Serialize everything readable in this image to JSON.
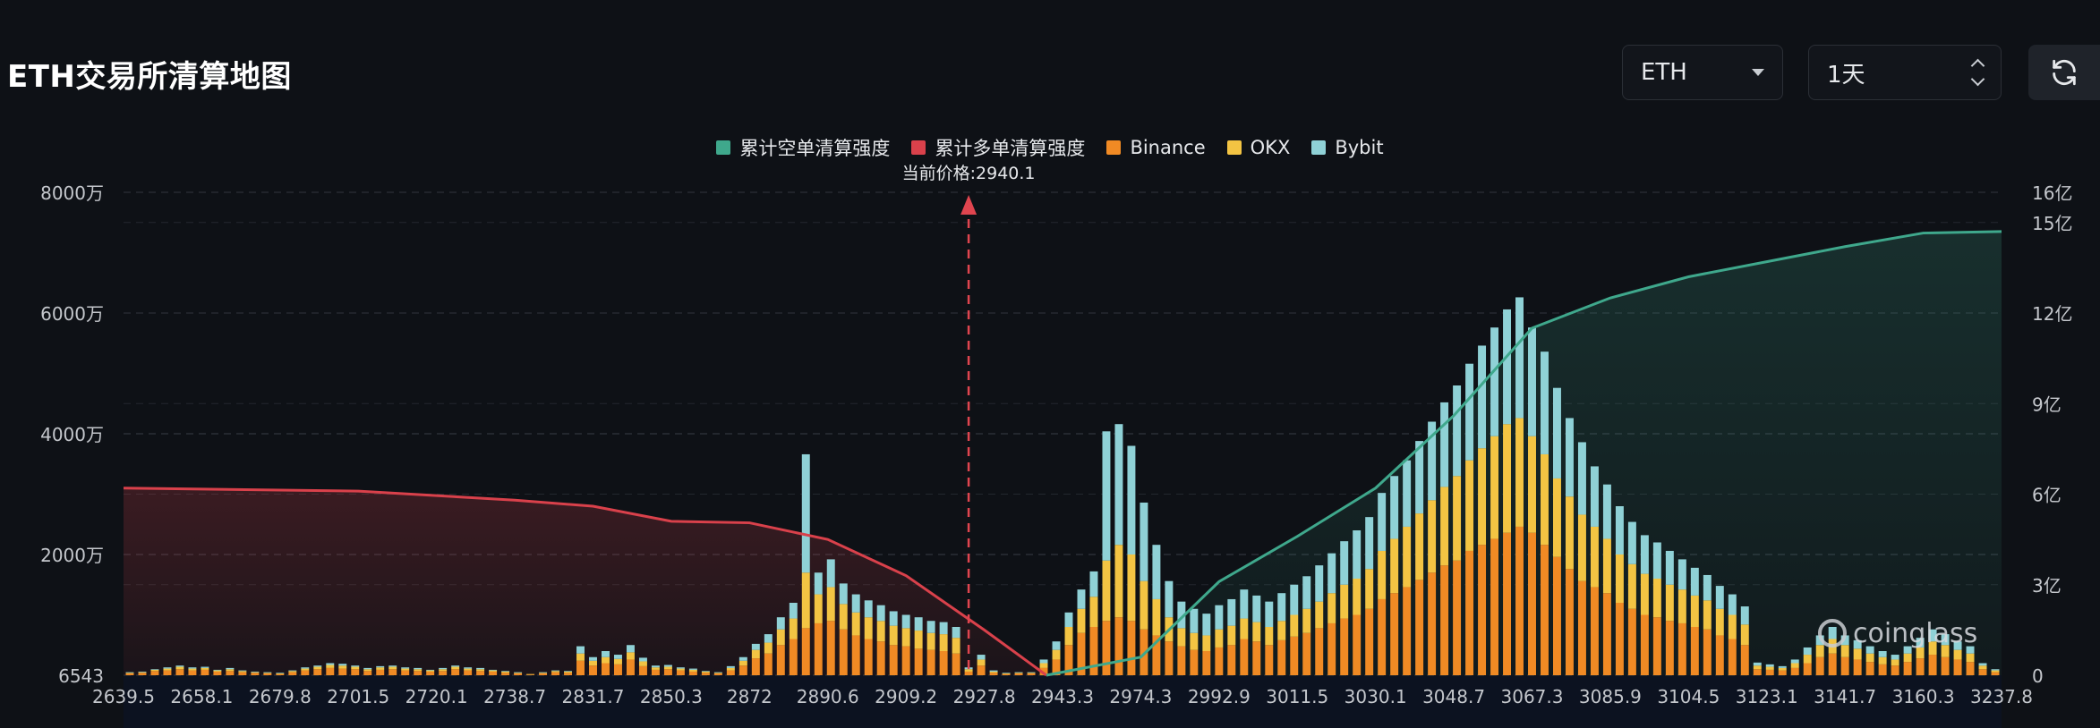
{
  "header": {
    "title": "ETH交易所清算地图",
    "asset_select": "ETH",
    "range_select": "1天",
    "refresh_icon": "refresh-icon"
  },
  "colors": {
    "background": "#0e1116",
    "short_cum": "#3fa88c",
    "long_cum": "#d9414b",
    "binance": "#f08a24",
    "okx": "#f3c443",
    "bybit": "#8fd1d6"
  },
  "chart_data": {
    "type": "bar",
    "legend": [
      {
        "key": "short_cum",
        "label": "累计空单清算强度"
      },
      {
        "key": "long_cum",
        "label": "累计多单清算强度"
      },
      {
        "key": "binance",
        "label": "Binance"
      },
      {
        "key": "okx",
        "label": "OKX"
      },
      {
        "key": "bybit",
        "label": "Bybit"
      }
    ],
    "legend_position": "top-center",
    "current_price_label": "当前价格:2940.1",
    "current_price": 2940.1,
    "x_tick_labels": [
      "2639.5",
      "2658.1",
      "2679.8",
      "2701.5",
      "2720.1",
      "2738.7",
      "2831.7",
      "2850.3",
      "2872",
      "2890.6",
      "2909.2",
      "2927.8",
      "2943.3",
      "2974.3",
      "2992.9",
      "3011.5",
      "3030.1",
      "3048.7",
      "3067.3",
      "3085.9",
      "3104.5",
      "3123.1",
      "3141.7",
      "3160.3",
      "3237.8"
    ],
    "y_left_ticks": [
      "6543",
      "2000万",
      "4000万",
      "6000万",
      "8000万"
    ],
    "y_left_range": [
      0,
      80000000
    ],
    "y_right_ticks": [
      "0",
      "3亿",
      "6亿",
      "9亿",
      "12亿",
      "15亿",
      "16亿"
    ],
    "y_right_range": [
      0,
      1600000000
    ],
    "grid": true,
    "bar_count": 150,
    "current_price_index": 67,
    "bars_binance": [
      0.3,
      0.4,
      0.7,
      0.8,
      1.0,
      0.8,
      0.9,
      0.6,
      0.7,
      0.5,
      0.4,
      0.3,
      0.2,
      0.5,
      0.8,
      1.0,
      1.2,
      1.1,
      1.0,
      0.7,
      0.9,
      1.0,
      0.8,
      0.7,
      0.6,
      0.7,
      1.0,
      0.8,
      0.7,
      0.6,
      0.4,
      0.3,
      0.1,
      0.3,
      0.5,
      0.4,
      2.4,
      1.6,
      2.0,
      1.8,
      2.6,
      1.5,
      0.9,
      1.0,
      0.8,
      0.6,
      0.4,
      0.3,
      0.8,
      1.6,
      2.8,
      3.6,
      5.0,
      6.0,
      7.8,
      8.6,
      9.0,
      7.6,
      6.6,
      6.0,
      5.6,
      5.0,
      4.8,
      4.4,
      4.2,
      4.0,
      3.6,
      0.6,
      1.6,
      0.4,
      0.2,
      0.3,
      0.3,
      1.2,
      2.6,
      5.0,
      7.0,
      8.0,
      9.0,
      9.6,
      9.0,
      7.6,
      6.6,
      5.6,
      4.8,
      4.2,
      4.0,
      4.6,
      5.0,
      6.0,
      5.6,
      5.0,
      5.8,
      6.4,
      7.0,
      7.8,
      8.6,
      9.4,
      10.0,
      11.0,
      12.6,
      13.6,
      14.6,
      15.8,
      17.0,
      18.2,
      19.0,
      20.6,
      21.6,
      22.6,
      23.6,
      24.6,
      23.6,
      21.6,
      19.6,
      17.6,
      15.6,
      14.6,
      13.6,
      12.0,
      11.0,
      10.0,
      9.6,
      9.0,
      8.6,
      8.0,
      7.6,
      6.6,
      6.0,
      5.0,
      1.0,
      0.9,
      0.8,
      1.2,
      2.0,
      3.0,
      3.6,
      3.0,
      2.6,
      2.2,
      1.8,
      1.6,
      2.2,
      2.8,
      3.4,
      3.0,
      2.6,
      2.2,
      1.0,
      0.5,
      0.4,
      0.3,
      0.5,
      0.3
    ],
    "bars_okx": [
      0.1,
      0.1,
      0.2,
      0.3,
      0.4,
      0.3,
      0.3,
      0.2,
      0.3,
      0.2,
      0.1,
      0.1,
      0.1,
      0.2,
      0.3,
      0.4,
      0.5,
      0.5,
      0.4,
      0.3,
      0.4,
      0.4,
      0.3,
      0.3,
      0.2,
      0.3,
      0.4,
      0.3,
      0.3,
      0.2,
      0.2,
      0.1,
      0.1,
      0.1,
      0.2,
      0.2,
      1.2,
      0.8,
      1.0,
      0.9,
      1.2,
      0.8,
      0.4,
      0.4,
      0.3,
      0.3,
      0.2,
      0.1,
      0.4,
      0.8,
      1.4,
      1.8,
      2.6,
      3.4,
      9.2,
      4.8,
      5.6,
      4.2,
      3.8,
      3.6,
      3.4,
      3.2,
      3.0,
      3.0,
      2.8,
      2.8,
      2.6,
      0.4,
      1.0,
      0.2,
      0.1,
      0.1,
      0.1,
      0.8,
      1.6,
      3.0,
      4.0,
      5.0,
      10.0,
      12.0,
      11.0,
      8.0,
      6.0,
      4.0,
      3.0,
      2.8,
      2.6,
      3.0,
      3.2,
      3.4,
      3.2,
      3.0,
      3.2,
      3.6,
      4.0,
      4.4,
      5.0,
      5.6,
      6.0,
      6.6,
      8.0,
      9.0,
      10.0,
      11.0,
      12.0,
      13.0,
      14.0,
      15.0,
      16.0,
      17.0,
      18.0,
      18.0,
      16.0,
      15.0,
      13.0,
      12.0,
      11.0,
      10.0,
      9.0,
      8.0,
      7.4,
      6.8,
      6.4,
      6.0,
      5.6,
      5.2,
      4.8,
      4.4,
      4.0,
      3.4,
      0.6,
      0.5,
      0.4,
      0.8,
      1.4,
      2.0,
      2.4,
      2.0,
      1.8,
      1.4,
      1.2,
      1.0,
      1.4,
      1.8,
      2.2,
      2.0,
      1.6,
      1.4,
      0.6,
      0.3,
      0.2,
      0.2,
      0.3,
      0.2
    ],
    "bars_bybit": [
      0.1,
      0.1,
      0.1,
      0.2,
      0.2,
      0.2,
      0.2,
      0.1,
      0.2,
      0.1,
      0.1,
      0.1,
      0.1,
      0.1,
      0.2,
      0.2,
      0.3,
      0.3,
      0.2,
      0.2,
      0.2,
      0.2,
      0.2,
      0.2,
      0.1,
      0.2,
      0.2,
      0.2,
      0.2,
      0.1,
      0.1,
      0.1,
      0.0,
      0.1,
      0.1,
      0.1,
      1.2,
      0.6,
      1.0,
      0.7,
      1.2,
      0.6,
      0.3,
      0.3,
      0.2,
      0.2,
      0.1,
      0.1,
      0.3,
      0.6,
      1.0,
      1.4,
      2.0,
      2.6,
      19.6,
      3.6,
      4.6,
      3.4,
      3.0,
      2.8,
      2.6,
      2.4,
      2.2,
      2.2,
      2.0,
      2.0,
      1.8,
      0.3,
      0.8,
      0.2,
      0.1,
      0.1,
      0.1,
      0.6,
      1.4,
      2.4,
      3.2,
      4.2,
      21.4,
      20.0,
      18.0,
      13.0,
      9.0,
      6.0,
      4.4,
      4.0,
      3.6,
      4.0,
      4.4,
      4.8,
      4.4,
      4.2,
      4.6,
      5.0,
      5.4,
      6.0,
      6.6,
      7.2,
      8.0,
      8.6,
      9.6,
      10.4,
      11.0,
      12.0,
      13.0,
      14.0,
      15.0,
      16.0,
      17.0,
      18.0,
      19.0,
      20.0,
      18.0,
      17.0,
      15.0,
      13.0,
      12.0,
      10.0,
      9.0,
      8.0,
      7.0,
      6.4,
      6.0,
      5.6,
      5.0,
      4.6,
      4.2,
      3.8,
      3.4,
      3.0,
      0.5,
      0.4,
      0.3,
      0.6,
      1.2,
      1.6,
      2.0,
      1.6,
      1.4,
      1.2,
      1.0,
      0.8,
      1.2,
      1.6,
      2.0,
      1.8,
      1.4,
      1.2,
      0.4,
      0.2,
      0.2,
      0.1,
      0.2,
      0.1
    ],
    "cumulative_long": [
      {
        "price": 2639.5,
        "value": 620000000
      },
      {
        "price": 2701.5,
        "value": 610000000
      },
      {
        "price": 2738.7,
        "value": 580000000
      },
      {
        "price": 2831.7,
        "value": 560000000
      },
      {
        "price": 2850.3,
        "value": 510000000
      },
      {
        "price": 2872,
        "value": 505000000
      },
      {
        "price": 2890.6,
        "value": 450000000
      },
      {
        "price": 2909.2,
        "value": 330000000
      },
      {
        "price": 2927.8,
        "value": 150000000
      },
      {
        "price": 2940.1,
        "value": 0
      }
    ],
    "cumulative_short": [
      {
        "price": 2940.1,
        "value": 0
      },
      {
        "price": 2974.3,
        "value": 60000000
      },
      {
        "price": 2992.9,
        "value": 310000000
      },
      {
        "price": 3011.5,
        "value": 460000000
      },
      {
        "price": 3030.1,
        "value": 620000000
      },
      {
        "price": 3048.7,
        "value": 860000000
      },
      {
        "price": 3067.3,
        "value": 1150000000
      },
      {
        "price": 3085.9,
        "value": 1250000000
      },
      {
        "price": 3104.5,
        "value": 1320000000
      },
      {
        "price": 3123.1,
        "value": 1370000000
      },
      {
        "price": 3141.7,
        "value": 1420000000
      },
      {
        "price": 3160.3,
        "value": 1465000000
      },
      {
        "price": 3237.8,
        "value": 1470000000
      }
    ],
    "watermark": "coinglass"
  }
}
